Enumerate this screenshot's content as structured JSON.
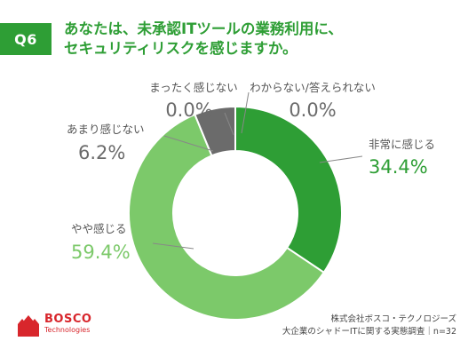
{
  "question": {
    "badge": "Q6",
    "title_line1": "あなたは、未承認ITツールの業務利用に、",
    "title_line2": "セキュリティリスクを感じますか。"
  },
  "colors": {
    "accent": "#2e9e35",
    "strong": "#2e9e35",
    "somewhat": "#7cc96a",
    "not_much": "#6b6b6b",
    "text_gray": "#555555",
    "brand_red": "#d8262c"
  },
  "chart_data": {
    "type": "pie",
    "donut": true,
    "labels": [
      "非常に感じる",
      "やや感じる",
      "あまり感じない",
      "まったく感じない",
      "わからない/答えられない"
    ],
    "values": [
      34.4,
      59.4,
      6.2,
      0.0,
      0.0
    ],
    "value_labels": [
      "34.4%",
      "59.4%",
      "6.2%",
      "0.0%",
      "0.0%"
    ],
    "colors": [
      "#2e9e35",
      "#7cc96a",
      "#6b6b6b",
      "#6b6b6b",
      "#6b6b6b"
    ]
  },
  "footer": {
    "brand": "BOSCO",
    "brand_sub": "Technologies",
    "source_line1": "株式会社ボスコ・テクノロジーズ",
    "source_line2": "大企業のシャドーITに関する実態調査｜n=32"
  }
}
